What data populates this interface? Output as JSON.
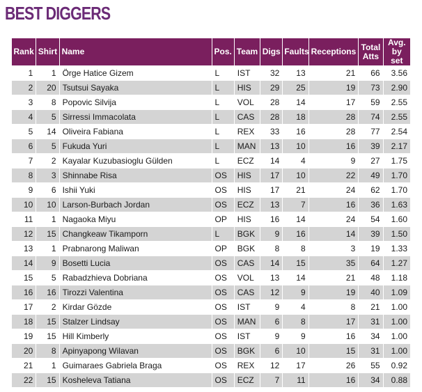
{
  "title": "BEST DIGGERS",
  "columns": {
    "rank": "Rank",
    "shirt": "Shirt",
    "name": "Name",
    "pos": "Pos.",
    "team": "Team",
    "digs": "Digs",
    "faults": "Faults",
    "receptions": "Receptions",
    "total_atts_1": "Total",
    "total_atts_2": "Atts",
    "avg_1": "Avg.",
    "avg_2": "by set"
  },
  "rows": [
    {
      "rank": "1",
      "shirt": "1",
      "name": "Örge Hatice Gizem",
      "pos": "L",
      "team": "IST",
      "digs": "32",
      "faults": "13",
      "receptions": "21",
      "total_atts": "66",
      "avg": "3.56"
    },
    {
      "rank": "2",
      "shirt": "20",
      "name": "Tsutsui Sayaka",
      "pos": "L",
      "team": "HIS",
      "digs": "29",
      "faults": "25",
      "receptions": "19",
      "total_atts": "73",
      "avg": "2.90"
    },
    {
      "rank": "3",
      "shirt": "8",
      "name": "Popovic Silvija",
      "pos": "L",
      "team": "VOL",
      "digs": "28",
      "faults": "14",
      "receptions": "17",
      "total_atts": "59",
      "avg": "2.55"
    },
    {
      "rank": "4",
      "shirt": "5",
      "name": "Sirressi Immacolata",
      "pos": "L",
      "team": "CAS",
      "digs": "28",
      "faults": "18",
      "receptions": "28",
      "total_atts": "74",
      "avg": "2.55"
    },
    {
      "rank": "5",
      "shirt": "14",
      "name": "Oliveira Fabiana",
      "pos": "L",
      "team": "REX",
      "digs": "33",
      "faults": "16",
      "receptions": "28",
      "total_atts": "77",
      "avg": "2.54"
    },
    {
      "rank": "6",
      "shirt": "5",
      "name": "Fukuda Yuri",
      "pos": "L",
      "team": "MAN",
      "digs": "13",
      "faults": "10",
      "receptions": "16",
      "total_atts": "39",
      "avg": "2.17"
    },
    {
      "rank": "7",
      "shirt": "2",
      "name": "Kayalar Kuzubasioglu Gülden",
      "pos": "L",
      "team": "ECZ",
      "digs": "14",
      "faults": "4",
      "receptions": "9",
      "total_atts": "27",
      "avg": "1.75"
    },
    {
      "rank": "8",
      "shirt": "3",
      "name": "Shinnabe Risa",
      "pos": "OS",
      "team": "HIS",
      "digs": "17",
      "faults": "10",
      "receptions": "22",
      "total_atts": "49",
      "avg": "1.70"
    },
    {
      "rank": "9",
      "shirt": "6",
      "name": "Ishii Yuki",
      "pos": "OS",
      "team": "HIS",
      "digs": "17",
      "faults": "21",
      "receptions": "24",
      "total_atts": "62",
      "avg": "1.70"
    },
    {
      "rank": "10",
      "shirt": "10",
      "name": "Larson-Burbach Jordan",
      "pos": "OS",
      "team": "ECZ",
      "digs": "13",
      "faults": "7",
      "receptions": "16",
      "total_atts": "36",
      "avg": "1.63"
    },
    {
      "rank": "11",
      "shirt": "1",
      "name": "Nagaoka Miyu",
      "pos": "OP",
      "team": "HIS",
      "digs": "16",
      "faults": "14",
      "receptions": "24",
      "total_atts": "54",
      "avg": "1.60"
    },
    {
      "rank": "12",
      "shirt": "15",
      "name": "Changkeaw Tikamporn",
      "pos": "L",
      "team": "BGK",
      "digs": "9",
      "faults": "16",
      "receptions": "14",
      "total_atts": "39",
      "avg": "1.50"
    },
    {
      "rank": "13",
      "shirt": "1",
      "name": "Prabnarong Maliwan",
      "pos": "OP",
      "team": "BGK",
      "digs": "8",
      "faults": "8",
      "receptions": "3",
      "total_atts": "19",
      "avg": "1.33"
    },
    {
      "rank": "14",
      "shirt": "9",
      "name": "Bosetti Lucia",
      "pos": "OS",
      "team": "CAS",
      "digs": "14",
      "faults": "15",
      "receptions": "35",
      "total_atts": "64",
      "avg": "1.27"
    },
    {
      "rank": "15",
      "shirt": "5",
      "name": "Rabadzhieva Dobriana",
      "pos": "OS",
      "team": "VOL",
      "digs": "13",
      "faults": "14",
      "receptions": "21",
      "total_atts": "48",
      "avg": "1.18"
    },
    {
      "rank": "16",
      "shirt": "16",
      "name": "Tirozzi Valentina",
      "pos": "OS",
      "team": "CAS",
      "digs": "12",
      "faults": "9",
      "receptions": "19",
      "total_atts": "40",
      "avg": "1.09"
    },
    {
      "rank": "17",
      "shirt": "2",
      "name": "Kirdar Gözde",
      "pos": "OS",
      "team": "IST",
      "digs": "9",
      "faults": "4",
      "receptions": "8",
      "total_atts": "21",
      "avg": "1.00"
    },
    {
      "rank": "18",
      "shirt": "15",
      "name": "Stalzer Lindsay",
      "pos": "OS",
      "team": "MAN",
      "digs": "6",
      "faults": "8",
      "receptions": "17",
      "total_atts": "31",
      "avg": "1.00"
    },
    {
      "rank": "19",
      "shirt": "15",
      "name": "Hill Kimberly",
      "pos": "OS",
      "team": "IST",
      "digs": "9",
      "faults": "9",
      "receptions": "16",
      "total_atts": "34",
      "avg": "1.00"
    },
    {
      "rank": "20",
      "shirt": "8",
      "name": "Apinyapong Wilavan",
      "pos": "OS",
      "team": "BGK",
      "digs": "6",
      "faults": "10",
      "receptions": "15",
      "total_atts": "31",
      "avg": "1.00"
    },
    {
      "rank": "21",
      "shirt": "1",
      "name": "Guimaraes Gabriela Braga",
      "pos": "OS",
      "team": "REX",
      "digs": "12",
      "faults": "17",
      "receptions": "26",
      "total_atts": "55",
      "avg": "0.92"
    },
    {
      "rank": "22",
      "shirt": "15",
      "name": "Kosheleva Tatiana",
      "pos": "OS",
      "team": "ECZ",
      "digs": "7",
      "faults": "11",
      "receptions": "16",
      "total_atts": "34",
      "avg": "0.88"
    }
  ],
  "colors": {
    "title": "#6b2a76",
    "header_bg": "#7a1f5e",
    "row_alt": "#d4d4d4"
  }
}
